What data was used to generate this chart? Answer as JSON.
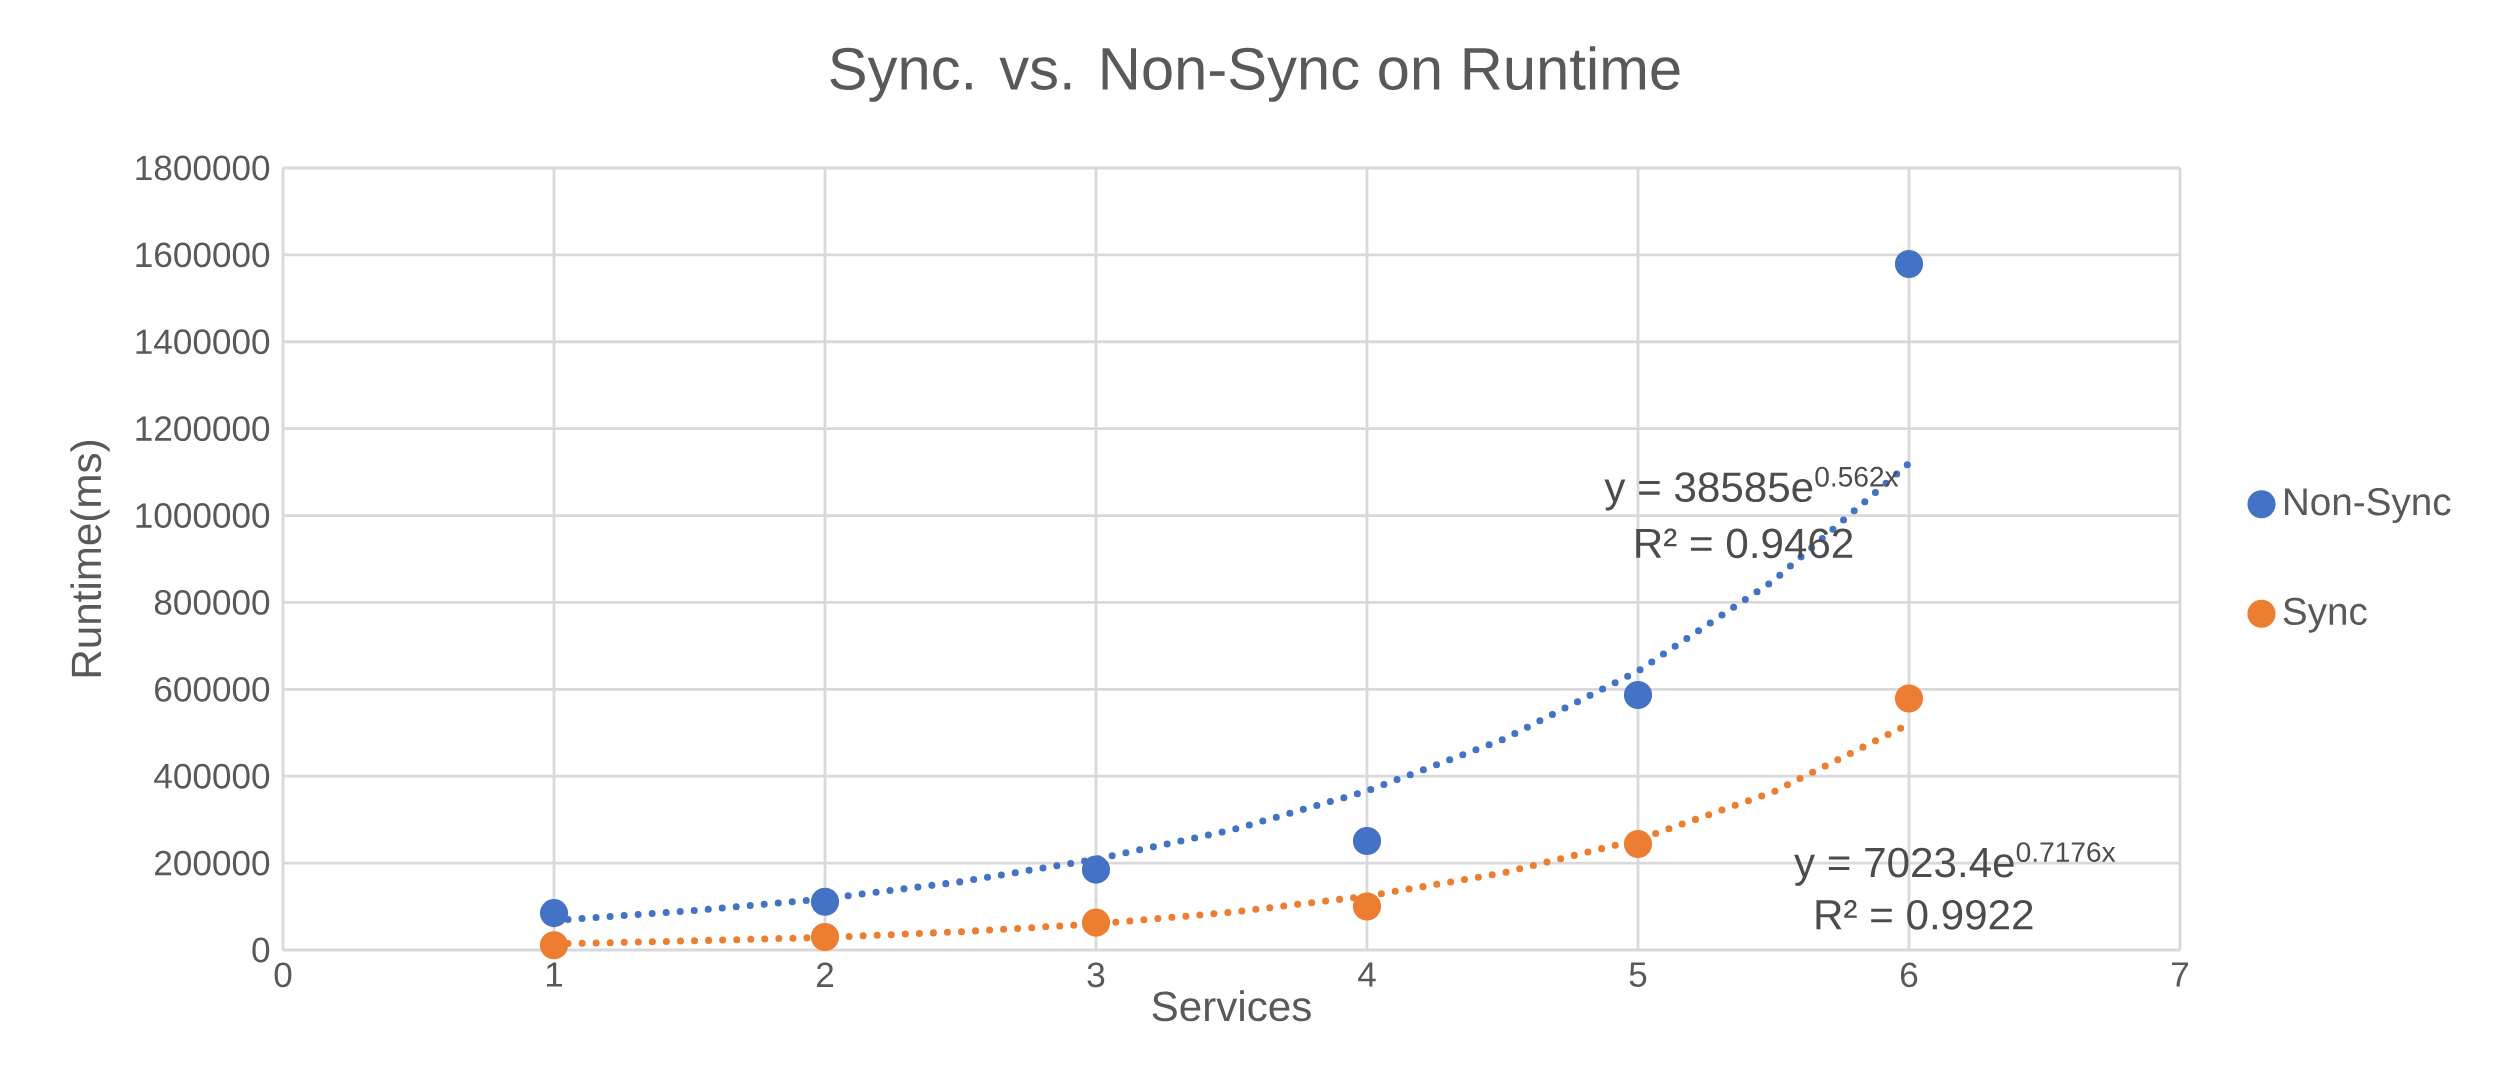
{
  "chart_data": {
    "type": "scatter",
    "title": "Sync. vs. Non-Sync on  Runtime",
    "xlabel": "Services",
    "ylabel": "Runtime(ms)",
    "series": [
      {
        "name": "Non-Sync",
        "color": "#4472c4",
        "x": [
          1,
          2,
          3,
          4,
          5,
          6
        ],
        "values": [
          85000,
          111000,
          185000,
          251000,
          587000,
          1579000
        ]
      },
      {
        "name": "Sync",
        "color": "#ed7d31",
        "x": [
          1,
          2,
          3,
          4,
          5,
          6
        ],
        "values": [
          11000,
          30000,
          63000,
          100000,
          244000,
          579000
        ]
      },
      {
        "color": "#4472c4",
        "type": "line",
        "marker": "none",
        "line_style": "dotted",
        "x": [
          1,
          1.5,
          2,
          2.5,
          3,
          3.5,
          4,
          4.5,
          5,
          5.5,
          6
        ],
        "values": [
          68000,
          90000,
          118000,
          157000,
          209000,
          276000,
          366000,
          484000,
          642000,
          850000,
          1120000
        ]
      },
      {
        "color": "#ed7d31",
        "type": "line",
        "marker": "none",
        "line_style": "dotted",
        "x": [
          1,
          1.5,
          2,
          2.5,
          3,
          3.5,
          4,
          4.5,
          5,
          5.5,
          6
        ],
        "values": [
          14000,
          21000,
          29000,
          42000,
          60000,
          87000,
          124000,
          177000,
          254000,
          364000,
          520000
        ]
      }
    ],
    "xlim": [
      0,
      7
    ],
    "xticks": [
      0,
      1,
      2,
      3,
      4,
      5,
      6,
      7
    ],
    "ylim": [
      0,
      1800000
    ],
    "yticks": [
      0,
      200000,
      400000,
      600000,
      800000,
      1000000,
      1200000,
      1400000,
      1600000,
      1800000
    ],
    "grid": true,
    "legend": "right",
    "marker": "circle",
    "annotations": [
      "y = 38585e$^{0.562x}$",
      "R² = 0.9462",
      "y = 7023.4e$^{0.7176x}$",
      "R² = 0.9922"
    ]
  }
}
